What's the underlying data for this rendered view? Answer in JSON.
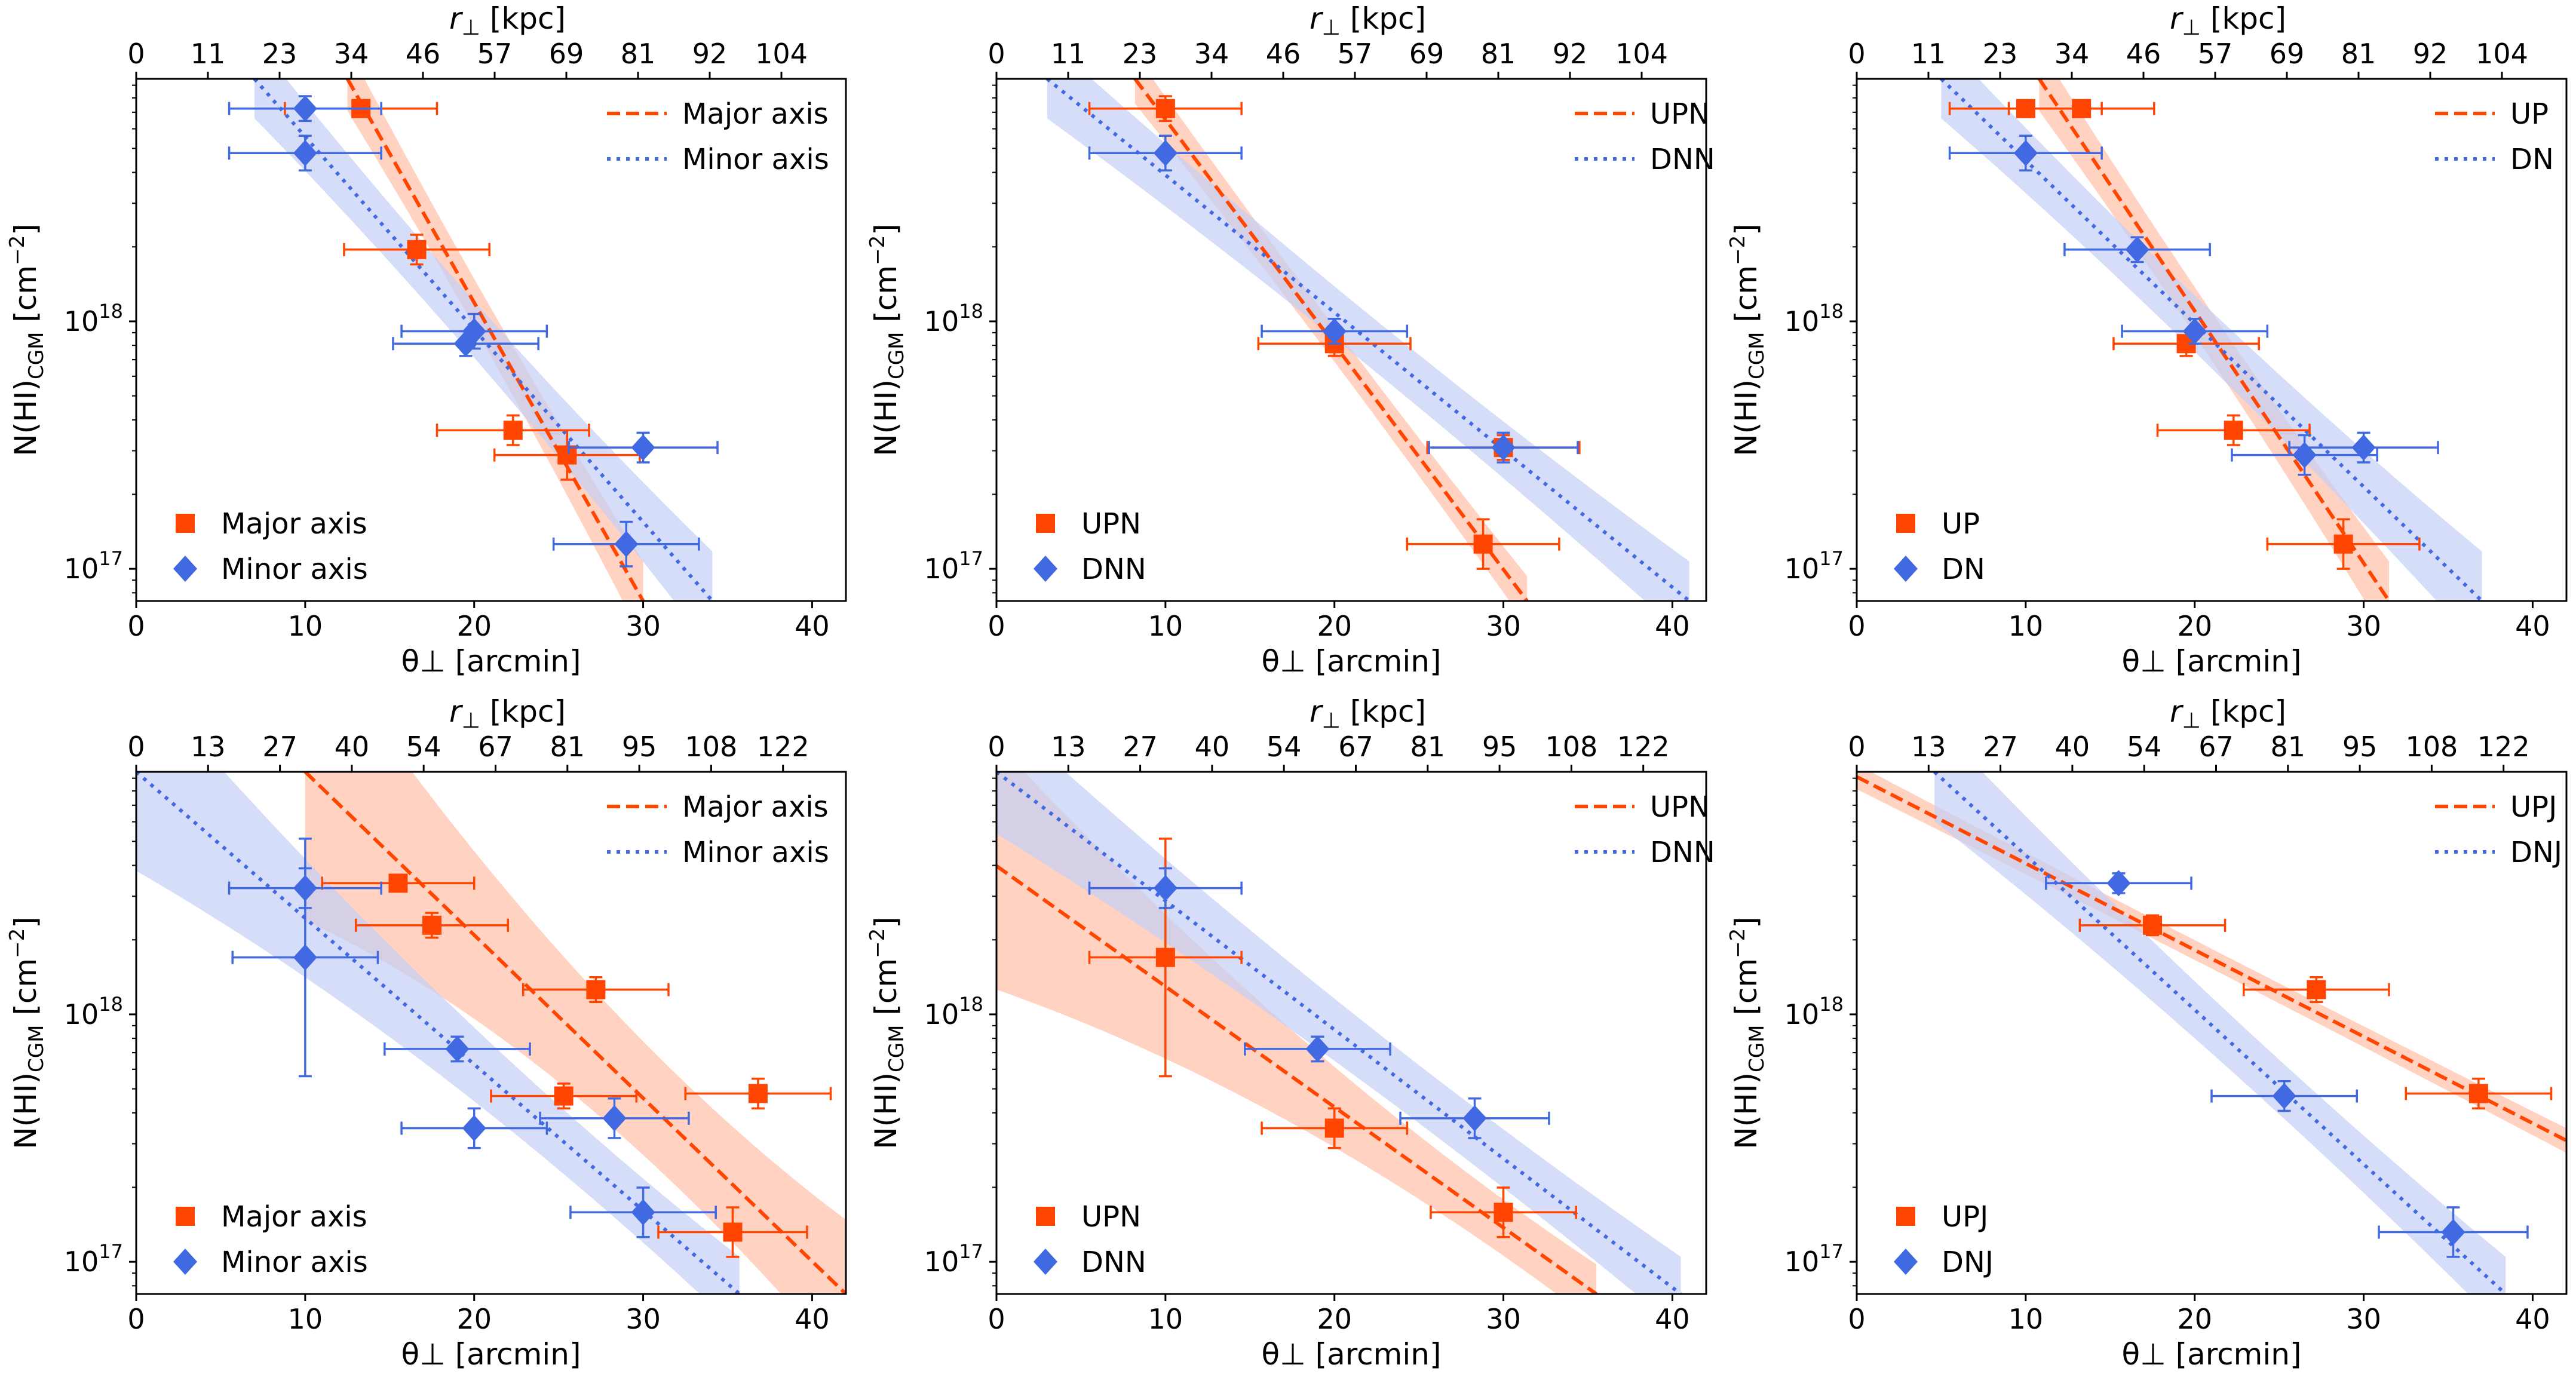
{
  "colors": {
    "major": "#ff4500",
    "minor": "#4169e1",
    "major_band": "#ffbfa6",
    "minor_band": "#c3cff5"
  },
  "axis_labels": {
    "xlabel": "θ⊥ [arcmin]",
    "top_xlabel_italic": "r",
    "top_xlabel_sub": "⊥",
    "top_xlabel_unit": " [kpc]",
    "ylabel_main": "N(HI)",
    "ylabel_sub": "CGM",
    "ylabel_unit": " [cm",
    "ylabel_exp": "−2",
    "ylabel_close": "]",
    "ytick_base": "10",
    "ytick_exp_17": "17",
    "ytick_exp_18": "18"
  },
  "chart_data": [
    {
      "type": "scatter",
      "xlim": [
        0,
        42
      ],
      "ylim_log10": [
        16.87,
        18.98
      ],
      "xticks": [
        0,
        10,
        20,
        30,
        40
      ],
      "yticks_log10": [
        17,
        18
      ],
      "top_ticks": [
        "0",
        "11",
        "23",
        "34",
        "46",
        "57",
        "69",
        "81",
        "92",
        "104"
      ],
      "legend_lines": [
        {
          "series": 0,
          "label": "Major axis",
          "style": "dashed"
        },
        {
          "series": 1,
          "label": "Minor axis",
          "style": "dotted"
        }
      ],
      "legend_markers": [
        {
          "series": 0,
          "label": "Major axis",
          "marker": "square"
        },
        {
          "series": 1,
          "label": "Minor axis",
          "marker": "diamond"
        }
      ],
      "series": [
        {
          "name": "Major axis",
          "marker": "square",
          "points": [
            {
              "x": 13.3,
              "y": 18.86,
              "xerr": 4.5,
              "yerr": 0.02
            },
            {
              "x": 16.6,
              "y": 18.29,
              "xerr": 4.3,
              "yerr": 0.06
            },
            {
              "x": 22.3,
              "y": 17.56,
              "xerr": 4.5,
              "yerr": 0.06
            },
            {
              "x": 25.5,
              "y": 17.46,
              "xerr": 4.3,
              "yerr": 0.1
            }
          ],
          "fit": {
            "x0": 12.5,
            "y0": 18.98,
            "x1": 30.0,
            "y1": 16.87
          },
          "band": {
            "w0": 0.13,
            "wc": 0.05,
            "w1": 0.16
          }
        },
        {
          "name": "Minor axis",
          "marker": "diamond",
          "points": [
            {
              "x": 10.0,
              "y": 18.86,
              "xerr": 4.5,
              "yerr": 0.05
            },
            {
              "x": 10.0,
              "y": 18.68,
              "xerr": 4.5,
              "yerr": 0.07
            },
            {
              "x": 20.0,
              "y": 17.96,
              "xerr": 4.3,
              "yerr": 0.07
            },
            {
              "x": 19.5,
              "y": 17.91,
              "xerr": 4.3,
              "yerr": 0.05
            },
            {
              "x": 30.0,
              "y": 17.49,
              "xerr": 4.4,
              "yerr": 0.06
            },
            {
              "x": 29.0,
              "y": 17.1,
              "xerr": 4.3,
              "yerr": 0.09
            }
          ],
          "fit": {
            "x0": 7.0,
            "y0": 18.98,
            "x1": 34.1,
            "y1": 16.87
          },
          "band": {
            "w0": 0.16,
            "wc": 0.05,
            "w1": 0.2
          }
        }
      ]
    },
    {
      "type": "scatter",
      "xlim": [
        0,
        42
      ],
      "ylim_log10": [
        16.87,
        18.98
      ],
      "xticks": [
        0,
        10,
        20,
        30,
        40
      ],
      "yticks_log10": [
        17,
        18
      ],
      "top_ticks": [
        "0",
        "11",
        "23",
        "34",
        "46",
        "57",
        "69",
        "81",
        "92",
        "104"
      ],
      "legend_lines": [
        {
          "series": 0,
          "label": "UPN",
          "style": "dashed"
        },
        {
          "series": 1,
          "label": "DNN",
          "style": "dotted"
        }
      ],
      "legend_markers": [
        {
          "series": 0,
          "label": "UPN",
          "marker": "square"
        },
        {
          "series": 1,
          "label": "DNN",
          "marker": "diamond"
        }
      ],
      "series": [
        {
          "name": "UPN",
          "marker": "square",
          "points": [
            {
              "x": 10.0,
              "y": 18.86,
              "xerr": 4.5,
              "yerr": 0.05
            },
            {
              "x": 20.0,
              "y": 17.91,
              "xerr": 4.5,
              "yerr": 0.05
            },
            {
              "x": 30.0,
              "y": 17.49,
              "xerr": 4.5,
              "yerr": 0.05
            },
            {
              "x": 28.8,
              "y": 17.1,
              "xerr": 4.5,
              "yerr": 0.1
            }
          ],
          "fit": {
            "x0": 8.2,
            "y0": 18.98,
            "x1": 31.4,
            "y1": 16.87
          },
          "band": {
            "w0": 0.1,
            "wc": 0.04,
            "w1": 0.1
          }
        },
        {
          "name": "DNN",
          "marker": "diamond",
          "points": [
            {
              "x": 10.0,
              "y": 18.68,
              "xerr": 4.5,
              "yerr": 0.07
            },
            {
              "x": 20.0,
              "y": 17.96,
              "xerr": 4.3,
              "yerr": 0.05
            },
            {
              "x": 30.0,
              "y": 17.49,
              "xerr": 4.4,
              "yerr": 0.06
            }
          ],
          "fit": {
            "x0": 3.0,
            "y0": 18.98,
            "x1": 41.0,
            "y1": 16.87
          },
          "band": {
            "w0": 0.16,
            "wc": 0.05,
            "w1": 0.16
          }
        }
      ]
    },
    {
      "type": "scatter",
      "xlim": [
        0,
        42
      ],
      "ylim_log10": [
        16.87,
        18.98
      ],
      "xticks": [
        0,
        10,
        20,
        30,
        40
      ],
      "yticks_log10": [
        17,
        18
      ],
      "top_ticks": [
        "0",
        "11",
        "23",
        "34",
        "46",
        "57",
        "69",
        "81",
        "92",
        "104"
      ],
      "legend_lines": [
        {
          "series": 0,
          "label": "UP",
          "style": "dashed"
        },
        {
          "series": 1,
          "label": "DN",
          "style": "dotted"
        }
      ],
      "legend_markers": [
        {
          "series": 0,
          "label": "UP",
          "marker": "square"
        },
        {
          "series": 1,
          "label": "DN",
          "marker": "diamond"
        }
      ],
      "series": [
        {
          "name": "UP",
          "marker": "square",
          "points": [
            {
              "x": 10.0,
              "y": 18.86,
              "xerr": 4.5,
              "yerr": 0.02
            },
            {
              "x": 13.3,
              "y": 18.86,
              "xerr": 4.3,
              "yerr": 0.02
            },
            {
              "x": 19.5,
              "y": 17.91,
              "xerr": 4.3,
              "yerr": 0.05
            },
            {
              "x": 22.3,
              "y": 17.56,
              "xerr": 4.5,
              "yerr": 0.06
            },
            {
              "x": 28.8,
              "y": 17.1,
              "xerr": 4.5,
              "yerr": 0.1
            }
          ],
          "fit": {
            "x0": 10.8,
            "y0": 18.98,
            "x1": 31.5,
            "y1": 16.87
          },
          "band": {
            "w0": 0.13,
            "wc": 0.05,
            "w1": 0.16
          }
        },
        {
          "name": "DN",
          "marker": "diamond",
          "points": [
            {
              "x": 10.0,
              "y": 18.68,
              "xerr": 4.5,
              "yerr": 0.07
            },
            {
              "x": 16.6,
              "y": 18.29,
              "xerr": 4.3,
              "yerr": 0.05
            },
            {
              "x": 20.0,
              "y": 17.96,
              "xerr": 4.3,
              "yerr": 0.05
            },
            {
              "x": 26.5,
              "y": 17.46,
              "xerr": 4.3,
              "yerr": 0.08
            },
            {
              "x": 30.0,
              "y": 17.49,
              "xerr": 4.4,
              "yerr": 0.06
            }
          ],
          "fit": {
            "x0": 5.0,
            "y0": 18.98,
            "x1": 37.0,
            "y1": 16.87
          },
          "band": {
            "w0": 0.16,
            "wc": 0.05,
            "w1": 0.2
          }
        }
      ]
    },
    {
      "type": "scatter",
      "xlim": [
        0,
        42
      ],
      "ylim_log10": [
        16.87,
        18.98
      ],
      "xticks": [
        0,
        10,
        20,
        30,
        40
      ],
      "yticks_log10": [
        17,
        18
      ],
      "top_ticks": [
        "0",
        "13",
        "27",
        "40",
        "54",
        "67",
        "81",
        "95",
        "108",
        "122"
      ],
      "legend_lines": [
        {
          "series": 0,
          "label": "Major axis",
          "style": "dashed"
        },
        {
          "series": 1,
          "label": "Minor axis",
          "style": "dotted"
        }
      ],
      "legend_markers": [
        {
          "series": 0,
          "label": "Major axis",
          "marker": "square"
        },
        {
          "series": 1,
          "label": "Minor axis",
          "marker": "diamond"
        }
      ],
      "series": [
        {
          "name": "Major axis",
          "marker": "square",
          "points": [
            {
              "x": 15.5,
              "y": 18.53,
              "xerr": 4.5,
              "yerr": 0.03
            },
            {
              "x": 17.5,
              "y": 18.36,
              "xerr": 4.5,
              "yerr": 0.05
            },
            {
              "x": 27.2,
              "y": 18.1,
              "xerr": 4.3,
              "yerr": 0.05
            },
            {
              "x": 25.3,
              "y": 17.67,
              "xerr": 4.3,
              "yerr": 0.05
            },
            {
              "x": 36.8,
              "y": 17.68,
              "xerr": 4.3,
              "yerr": 0.06
            },
            {
              "x": 35.3,
              "y": 17.12,
              "xerr": 4.4,
              "yerr": 0.1
            }
          ],
          "fit": {
            "x0": 10.0,
            "y0": 18.98,
            "x1": 42.0,
            "y1": 16.87
          },
          "band": {
            "w0": 0.6,
            "wc": 0.06,
            "w1": 0.3
          }
        },
        {
          "name": "Minor axis",
          "marker": "diamond",
          "points": [
            {
              "x": 10.0,
              "y": 18.51,
              "xerr": 4.5,
              "yerr": 0.08
            },
            {
              "x": 10.0,
              "y": 18.23,
              "xerr": 4.3,
              "yerr": 0.48
            },
            {
              "x": 19.0,
              "y": 17.86,
              "xerr": 4.3,
              "yerr": 0.05
            },
            {
              "x": 20.0,
              "y": 17.54,
              "xerr": 4.3,
              "yerr": 0.08
            },
            {
              "x": 28.3,
              "y": 17.58,
              "xerr": 4.4,
              "yerr": 0.08
            },
            {
              "x": 30.0,
              "y": 17.2,
              "xerr": 4.3,
              "yerr": 0.1
            }
          ],
          "fit": {
            "x0": 0.0,
            "y0": 18.98,
            "x1": 35.7,
            "y1": 16.87
          },
          "band": {
            "w0": 0.4,
            "wc": 0.05,
            "w1": 0.15
          }
        }
      ]
    },
    {
      "type": "scatter",
      "xlim": [
        0,
        42
      ],
      "ylim_log10": [
        16.87,
        18.98
      ],
      "xticks": [
        0,
        10,
        20,
        30,
        40
      ],
      "yticks_log10": [
        17,
        18
      ],
      "top_ticks": [
        "0",
        "13",
        "27",
        "40",
        "54",
        "67",
        "81",
        "95",
        "108",
        "122"
      ],
      "legend_lines": [
        {
          "series": 0,
          "label": "UPN",
          "style": "dashed"
        },
        {
          "series": 1,
          "label": "DNN",
          "style": "dotted"
        }
      ],
      "legend_markers": [
        {
          "series": 0,
          "label": "UPN",
          "marker": "square"
        },
        {
          "series": 1,
          "label": "DNN",
          "marker": "diamond"
        }
      ],
      "series": [
        {
          "name": "UPN",
          "marker": "square",
          "points": [
            {
              "x": 10.0,
              "y": 18.23,
              "xerr": 4.5,
              "yerr": 0.48
            },
            {
              "x": 20.0,
              "y": 17.54,
              "xerr": 4.3,
              "yerr": 0.08
            },
            {
              "x": 30.0,
              "y": 17.2,
              "xerr": 4.3,
              "yerr": 0.1
            }
          ],
          "fit": {
            "x0": 0.0,
            "y0": 18.6,
            "x1": 35.5,
            "y1": 16.87
          },
          "band": {
            "w0": 0.5,
            "wc": 0.06,
            "w1": 0.12
          }
        },
        {
          "name": "DNN",
          "marker": "diamond",
          "points": [
            {
              "x": 10.0,
              "y": 18.51,
              "xerr": 4.5,
              "yerr": 0.08
            },
            {
              "x": 19.0,
              "y": 17.86,
              "xerr": 4.3,
              "yerr": 0.05
            },
            {
              "x": 28.3,
              "y": 17.58,
              "xerr": 4.4,
              "yerr": 0.08
            }
          ],
          "fit": {
            "x0": 0.0,
            "y0": 18.98,
            "x1": 40.5,
            "y1": 16.87
          },
          "band": {
            "w0": 0.25,
            "wc": 0.05,
            "w1": 0.15
          }
        }
      ]
    },
    {
      "type": "scatter",
      "xlim": [
        0,
        42
      ],
      "ylim_log10": [
        16.87,
        18.98
      ],
      "xticks": [
        0,
        10,
        20,
        30,
        40
      ],
      "yticks_log10": [
        17,
        18
      ],
      "top_ticks": [
        "0",
        "13",
        "27",
        "40",
        "54",
        "67",
        "81",
        "95",
        "108",
        "122"
      ],
      "legend_lines": [
        {
          "series": 0,
          "label": "UPJ",
          "style": "dashed"
        },
        {
          "series": 1,
          "label": "DNJ",
          "style": "dotted"
        }
      ],
      "legend_markers": [
        {
          "series": 0,
          "label": "UPJ",
          "marker": "square"
        },
        {
          "series": 1,
          "label": "DNJ",
          "marker": "diamond"
        }
      ],
      "series": [
        {
          "name": "UPJ",
          "marker": "square",
          "points": [
            {
              "x": 17.5,
              "y": 18.36,
              "xerr": 4.3,
              "yerr": 0.04
            },
            {
              "x": 27.2,
              "y": 18.1,
              "xerr": 4.3,
              "yerr": 0.05
            },
            {
              "x": 36.8,
              "y": 17.68,
              "xerr": 4.3,
              "yerr": 0.06
            }
          ],
          "fit": {
            "x0": 0.0,
            "y0": 18.96,
            "x1": 42.0,
            "y1": 17.49
          },
          "band": {
            "w0": 0.05,
            "wc": 0.03,
            "w1": 0.05
          }
        },
        {
          "name": "DNJ",
          "marker": "diamond",
          "points": [
            {
              "x": 15.5,
              "y": 18.53,
              "xerr": 4.3,
              "yerr": 0.04
            },
            {
              "x": 25.3,
              "y": 17.67,
              "xerr": 4.3,
              "yerr": 0.06
            },
            {
              "x": 35.3,
              "y": 17.12,
              "xerr": 4.4,
              "yerr": 0.1
            }
          ],
          "fit": {
            "x0": 4.6,
            "y0": 18.98,
            "x1": 38.4,
            "y1": 16.87
          },
          "band": {
            "w0": 0.2,
            "wc": 0.05,
            "w1": 0.15
          }
        }
      ]
    }
  ]
}
